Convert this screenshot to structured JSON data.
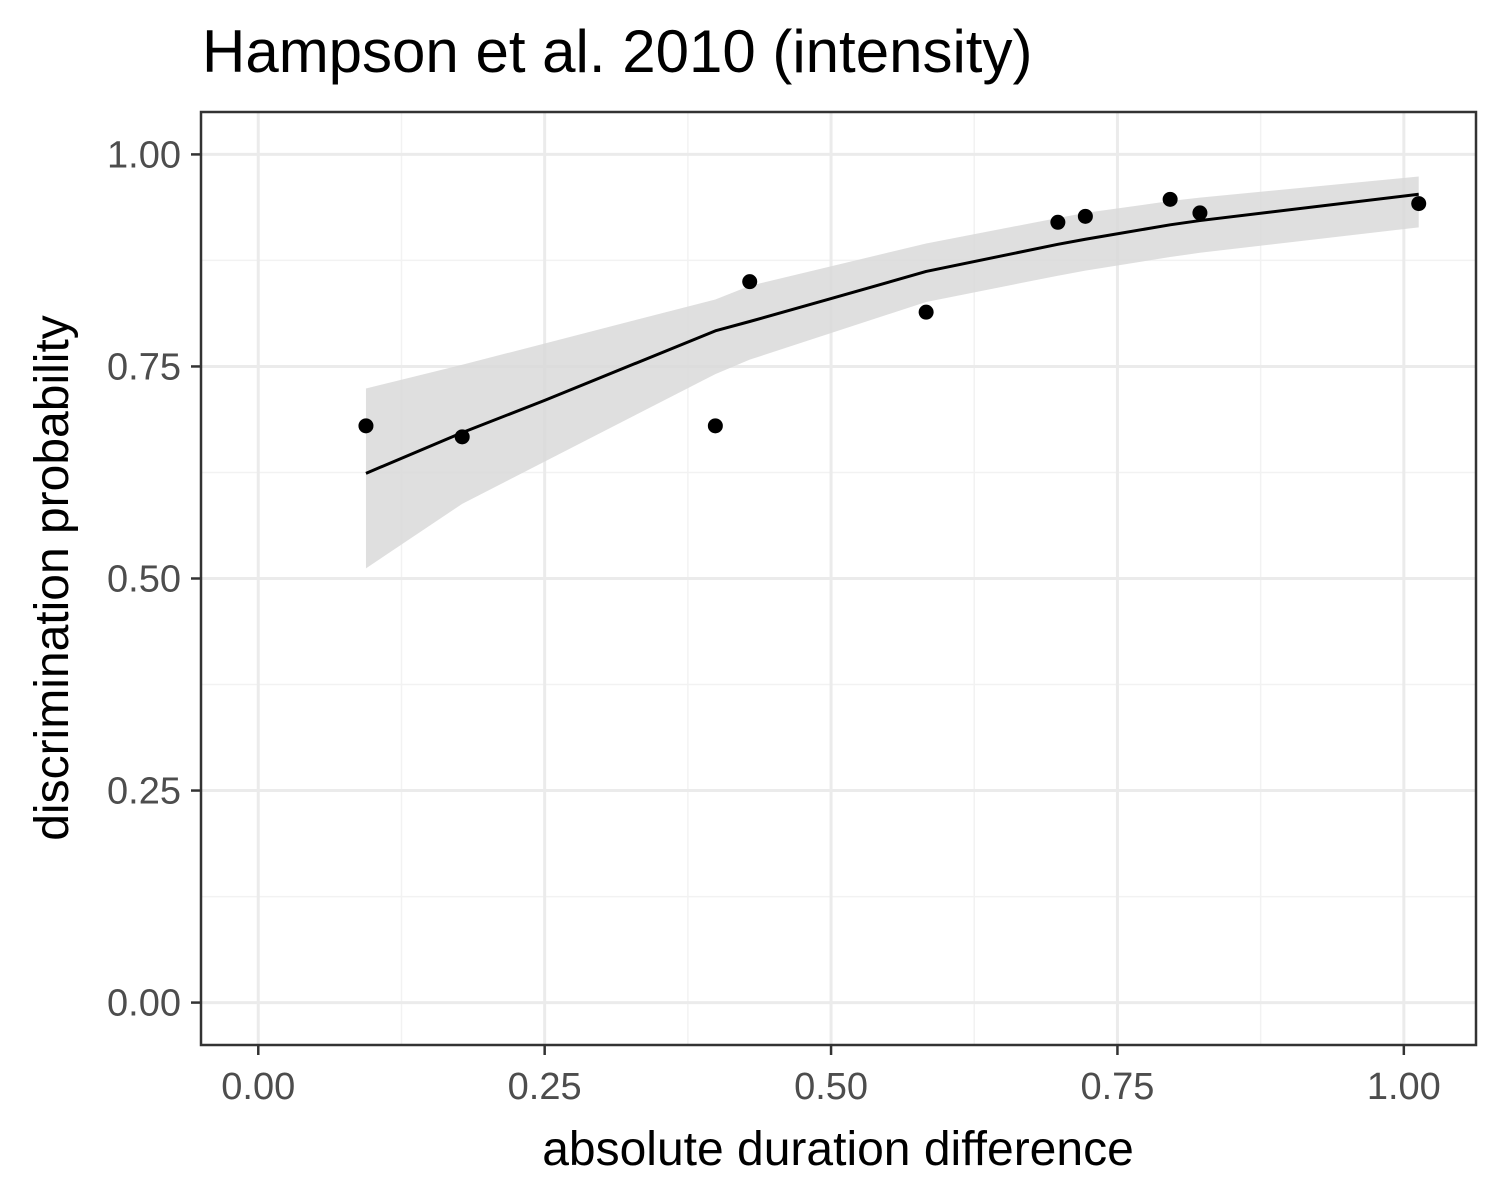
{
  "chart_data": {
    "type": "scatter",
    "title": "Hampson et al. 2010 (intensity)",
    "xlabel": "absolute duration difference",
    "ylabel": "discrimination probability",
    "xlim": [
      -0.05,
      1.063
    ],
    "ylim": [
      -0.05,
      1.05
    ],
    "x_ticks": [
      0,
      0.25,
      0.5,
      0.75,
      1
    ],
    "x_tick_labels": [
      "0.00",
      "0.25",
      "0.50",
      "0.75",
      "1.00"
    ],
    "y_ticks": [
      0,
      0.25,
      0.5,
      0.75,
      1
    ],
    "y_tick_labels": [
      "0.00",
      "0.25",
      "0.50",
      "0.75",
      "1.00"
    ],
    "grid": true,
    "points": [
      {
        "x": 0.094,
        "y": 0.68
      },
      {
        "x": 0.178,
        "y": 0.667
      },
      {
        "x": 0.399,
        "y": 0.68
      },
      {
        "x": 0.429,
        "y": 0.85
      },
      {
        "x": 0.583,
        "y": 0.814
      },
      {
        "x": 0.698,
        "y": 0.92
      },
      {
        "x": 0.722,
        "y": 0.927
      },
      {
        "x": 0.796,
        "y": 0.947
      },
      {
        "x": 0.822,
        "y": 0.931
      },
      {
        "x": 1.013,
        "y": 0.942
      }
    ],
    "fit_line": [
      {
        "x": 0.094,
        "y": 0.624
      },
      {
        "x": 0.178,
        "y": 0.672
      },
      {
        "x": 0.25,
        "y": 0.71
      },
      {
        "x": 0.399,
        "y": 0.792
      },
      {
        "x": 0.429,
        "y": 0.803
      },
      {
        "x": 0.5,
        "y": 0.83
      },
      {
        "x": 0.583,
        "y": 0.862
      },
      {
        "x": 0.698,
        "y": 0.894
      },
      {
        "x": 0.722,
        "y": 0.9
      },
      {
        "x": 0.796,
        "y": 0.917
      },
      {
        "x": 0.822,
        "y": 0.922
      },
      {
        "x": 1.013,
        "y": 0.953
      }
    ],
    "confidence_band": [
      {
        "x": 0.094,
        "lower": 0.512,
        "upper": 0.724
      },
      {
        "x": 0.178,
        "lower": 0.588,
        "upper": 0.752
      },
      {
        "x": 0.399,
        "lower": 0.741,
        "upper": 0.829
      },
      {
        "x": 0.429,
        "lower": 0.758,
        "upper": 0.845
      },
      {
        "x": 0.583,
        "lower": 0.826,
        "upper": 0.895
      },
      {
        "x": 0.698,
        "lower": 0.857,
        "upper": 0.925
      },
      {
        "x": 0.722,
        "lower": 0.863,
        "upper": 0.931
      },
      {
        "x": 0.796,
        "lower": 0.879,
        "upper": 0.945
      },
      {
        "x": 0.822,
        "lower": 0.884,
        "upper": 0.949
      },
      {
        "x": 1.013,
        "lower": 0.914,
        "upper": 0.974
      }
    ],
    "colors": {
      "points": "#000000",
      "line": "#000000",
      "band": "#d9d9d9",
      "grid_major": "#ebebeb",
      "grid_minor": "#f2f2f2",
      "panel_border": "#333333",
      "tick_label": "#4d4d4d"
    }
  }
}
